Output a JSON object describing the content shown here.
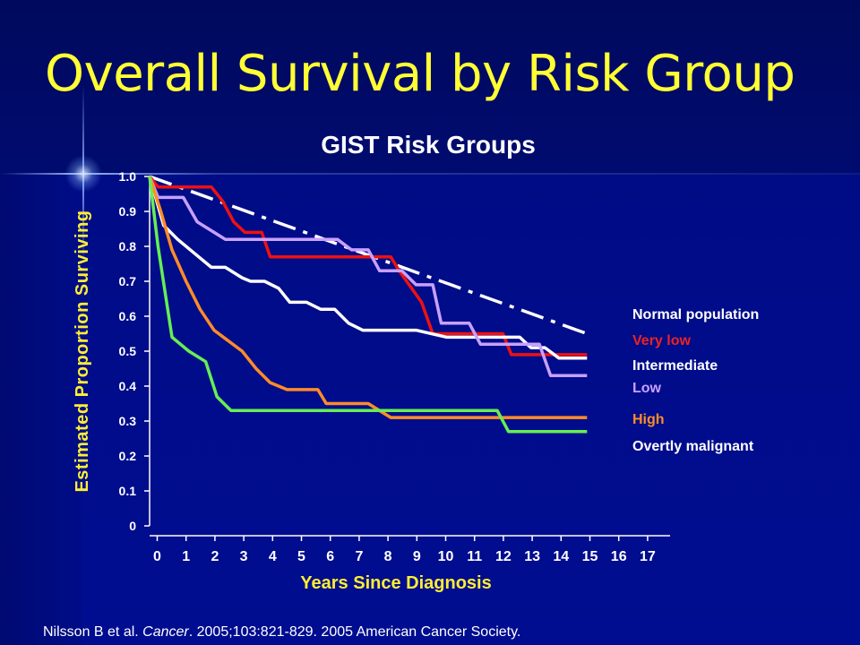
{
  "slide": {
    "title": "Overall Survival by Risk Group",
    "citation_prefix": "Nilsson B et al. ",
    "citation_journal": "Cancer",
    "citation_suffix": ". 2005;103:821-829.  2005 American Cancer Society."
  },
  "colors": {
    "background": "#000c8e",
    "title": "#ffff33",
    "axis_labels": "#ffee33"
  },
  "chart_data": {
    "type": "line",
    "title": "GIST Risk Groups",
    "xlabel": "Years Since Diagnosis",
    "ylabel": "Estimated Proportion Surviving",
    "xlim": [
      0,
      17
    ],
    "ylim": [
      0,
      1
    ],
    "x_ticks": [
      0,
      1,
      2,
      3,
      4,
      5,
      6,
      7,
      8,
      9,
      10,
      11,
      12,
      13,
      14,
      15,
      16,
      17
    ],
    "y_ticks": [
      "0",
      "0.1",
      "0.2",
      "0.3",
      "0.4",
      "0.5",
      "0.6",
      "0.7",
      "0.8",
      "0.9",
      "1.0"
    ],
    "grid": false,
    "legend_placement": "right",
    "series": [
      {
        "name": "Normal population",
        "color": "#ffffff",
        "style": "dash-dot",
        "label_color": "#ffffff",
        "points": [
          [
            0,
            1.0
          ],
          [
            15.6,
            0.55
          ]
        ]
      },
      {
        "name": "Very low",
        "color": "#ee1111",
        "style": "step",
        "label_color": "#ee2222",
        "points": [
          [
            0,
            1.0
          ],
          [
            0.3,
            0.97
          ],
          [
            2.2,
            0.97
          ],
          [
            2.6,
            0.93
          ],
          [
            3.0,
            0.87
          ],
          [
            3.4,
            0.84
          ],
          [
            4.0,
            0.84
          ],
          [
            4.3,
            0.77
          ],
          [
            8.6,
            0.77
          ],
          [
            8.9,
            0.73
          ],
          [
            9.7,
            0.64
          ],
          [
            10.1,
            0.55
          ],
          [
            12.6,
            0.55
          ],
          [
            12.9,
            0.49
          ],
          [
            15.6,
            0.49
          ]
        ]
      },
      {
        "name": "Intermediate",
        "color": "#ffffff",
        "style": "step",
        "label_color": "#ffffff",
        "points": [
          [
            0,
            1.0
          ],
          [
            0.5,
            0.86
          ],
          [
            1.0,
            0.82
          ],
          [
            1.6,
            0.78
          ],
          [
            2.2,
            0.74
          ],
          [
            2.7,
            0.74
          ],
          [
            3.3,
            0.71
          ],
          [
            3.6,
            0.7
          ],
          [
            4.1,
            0.7
          ],
          [
            4.6,
            0.68
          ],
          [
            5.0,
            0.64
          ],
          [
            5.6,
            0.64
          ],
          [
            6.1,
            0.62
          ],
          [
            6.6,
            0.62
          ],
          [
            7.1,
            0.58
          ],
          [
            7.6,
            0.56
          ],
          [
            9.5,
            0.56
          ],
          [
            10.6,
            0.54
          ],
          [
            13.2,
            0.54
          ],
          [
            13.6,
            0.51
          ],
          [
            14.1,
            0.51
          ],
          [
            14.6,
            0.48
          ],
          [
            15.6,
            0.48
          ]
        ]
      },
      {
        "name": "Low",
        "color": "#c8a0ff",
        "style": "step",
        "label_color": "#c8a0ff",
        "points": [
          [
            0,
            1.0
          ],
          [
            0.3,
            0.94
          ],
          [
            1.2,
            0.94
          ],
          [
            1.7,
            0.87
          ],
          [
            2.3,
            0.84
          ],
          [
            2.7,
            0.82
          ],
          [
            6.7,
            0.82
          ],
          [
            7.2,
            0.79
          ],
          [
            7.8,
            0.79
          ],
          [
            8.2,
            0.73
          ],
          [
            9.0,
            0.73
          ],
          [
            9.5,
            0.69
          ],
          [
            10.1,
            0.69
          ],
          [
            10.4,
            0.58
          ],
          [
            11.4,
            0.58
          ],
          [
            11.8,
            0.52
          ],
          [
            13.9,
            0.52
          ],
          [
            14.3,
            0.43
          ],
          [
            15.6,
            0.43
          ]
        ]
      },
      {
        "name": "High",
        "color": "#ff8c28",
        "style": "step",
        "label_color": "#ff8c28",
        "points": [
          [
            0,
            1.0
          ],
          [
            0.4,
            0.9
          ],
          [
            0.8,
            0.79
          ],
          [
            1.3,
            0.7
          ],
          [
            1.8,
            0.62
          ],
          [
            2.3,
            0.56
          ],
          [
            2.8,
            0.53
          ],
          [
            3.3,
            0.5
          ],
          [
            3.8,
            0.45
          ],
          [
            4.3,
            0.41
          ],
          [
            4.9,
            0.39
          ],
          [
            6.0,
            0.39
          ],
          [
            6.3,
            0.35
          ],
          [
            7.8,
            0.35
          ],
          [
            8.6,
            0.31
          ],
          [
            15.6,
            0.31
          ]
        ]
      },
      {
        "name": "Overtly malignant",
        "color": "#66ee55",
        "style": "step",
        "label_color": "#ffffff",
        "points": [
          [
            0,
            1.0
          ],
          [
            0.3,
            0.8
          ],
          [
            0.8,
            0.54
          ],
          [
            1.4,
            0.5
          ],
          [
            2.0,
            0.47
          ],
          [
            2.4,
            0.37
          ],
          [
            2.9,
            0.33
          ],
          [
            12.4,
            0.33
          ],
          [
            12.8,
            0.27
          ],
          [
            15.6,
            0.27
          ]
        ]
      }
    ]
  }
}
